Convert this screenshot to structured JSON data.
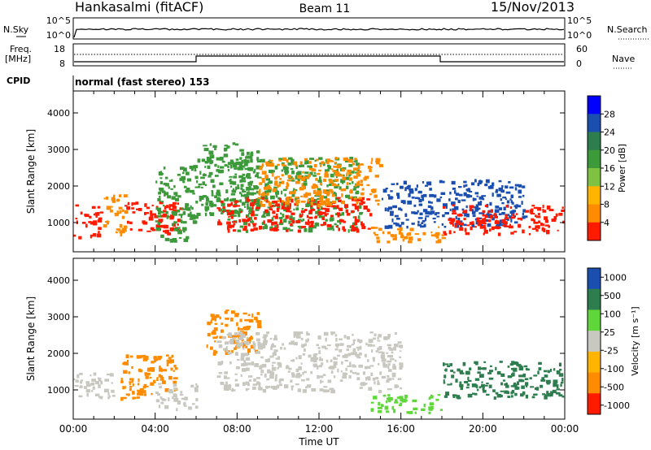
{
  "header": {
    "station": "Hankasalmi (fitACF)",
    "beam": "Beam 11",
    "date": "15/Nov/2013"
  },
  "noise_panel": {
    "left_label": "N.Sky",
    "left_ticks": [
      "10^5",
      "10^0"
    ],
    "right_ticks": [
      "10^5",
      "10^0"
    ],
    "right_label": "N.Search"
  },
  "freq_panel": {
    "left_label_1": "Freq.",
    "left_label_2": "[MHz]",
    "left_ticks": [
      "18",
      "8"
    ],
    "right_ticks": [
      "60",
      "0"
    ],
    "right_label": "Nave"
  },
  "cpid": {
    "label": "CPID",
    "value": "normal (fast stereo) 153"
  },
  "colors": {
    "red": "#ff1a00",
    "orange": "#ff8c00",
    "yellow": "#ffb400",
    "lightgreen": "#7fc241",
    "green": "#3c9a3a",
    "darkgreen": "#2e7d4f",
    "blue": "#1a4fb0",
    "grey": "#c8c8c0",
    "brightgreen": "#5fd63a"
  },
  "chart_data": [
    {
      "type": "heatmap",
      "name": "power",
      "ylabel": "Slant Range [km]",
      "yticks": [
        "4000",
        "3000",
        "2000",
        "1000"
      ],
      "ylim": [
        200,
        4600
      ],
      "colorbar_label": "Power [dB]",
      "colorbar_ticks": [
        "28",
        "24",
        "20",
        "16",
        "12",
        "8",
        "4"
      ],
      "colorbar_colors": [
        "#0000ff",
        "#1a4fb0",
        "#2e7d4f",
        "#3c9a3a",
        "#7fc241",
        "#ffb400",
        "#ff8c00",
        "#ff1a00"
      ],
      "regions": [
        {
          "x0": 0.0,
          "x1": 1.3,
          "y0": 600,
          "y1": 1500,
          "color": "red"
        },
        {
          "x0": 1.4,
          "x1": 2.5,
          "y0": 700,
          "y1": 1800,
          "color": "orange"
        },
        {
          "x0": 2.5,
          "x1": 5.2,
          "y0": 700,
          "y1": 1600,
          "color": "red"
        },
        {
          "x0": 4.0,
          "x1": 6.0,
          "y0": 500,
          "y1": 2600,
          "color": "green"
        },
        {
          "x0": 6.0,
          "x1": 9.0,
          "y0": 1200,
          "y1": 3200,
          "color": "green"
        },
        {
          "x0": 7.5,
          "x1": 14.0,
          "y0": 800,
          "y1": 2800,
          "color": "green"
        },
        {
          "x0": 7.0,
          "x1": 14.5,
          "y0": 800,
          "y1": 1700,
          "color": "red"
        },
        {
          "x0": 9.0,
          "x1": 15.0,
          "y0": 1500,
          "y1": 2800,
          "color": "orange"
        },
        {
          "x0": 14.5,
          "x1": 18.0,
          "y0": 500,
          "y1": 900,
          "color": "orange"
        },
        {
          "x0": 15.0,
          "x1": 22.0,
          "y0": 900,
          "y1": 2200,
          "color": "blue"
        },
        {
          "x0": 18.0,
          "x1": 23.9,
          "y0": 700,
          "y1": 1500,
          "color": "red"
        }
      ]
    },
    {
      "type": "heatmap",
      "name": "velocity",
      "xlabel": "Time UT",
      "ylabel": "Slant Range [km]",
      "yticks": [
        "4000",
        "3000",
        "2000",
        "1000"
      ],
      "ylim": [
        200,
        4600
      ],
      "xticks": [
        "00:00",
        "04:00",
        "08:00",
        "12:00",
        "16:00",
        "20:00",
        "00:00"
      ],
      "colorbar_label": "Velocity [m s⁻¹]",
      "colorbar_ticks": [
        "1000",
        "500",
        "100",
        "25",
        "-25",
        "-100",
        "-500",
        "-1000"
      ],
      "colorbar_colors": [
        "#1a4fb0",
        "#2e7d4f",
        "#5fd63a",
        "#c8c8c0",
        "#ffb400",
        "#ff8c00",
        "#ff1a00"
      ],
      "regions": [
        {
          "x0": 0.0,
          "x1": 2.0,
          "y0": 800,
          "y1": 1500,
          "color": "grey"
        },
        {
          "x0": 2.2,
          "x1": 5.0,
          "y0": 800,
          "y1": 2000,
          "color": "orange"
        },
        {
          "x0": 4.0,
          "x1": 6.0,
          "y0": 500,
          "y1": 1200,
          "color": "grey"
        },
        {
          "x0": 6.5,
          "x1": 9.0,
          "y0": 2000,
          "y1": 3200,
          "color": "orange"
        },
        {
          "x0": 7.0,
          "x1": 16.0,
          "y0": 1000,
          "y1": 2600,
          "color": "grey"
        },
        {
          "x0": 14.5,
          "x1": 18.0,
          "y0": 400,
          "y1": 900,
          "color": "brightgreen"
        },
        {
          "x0": 18.0,
          "x1": 23.9,
          "y0": 800,
          "y1": 1800,
          "color": "darkgreen"
        }
      ]
    }
  ]
}
